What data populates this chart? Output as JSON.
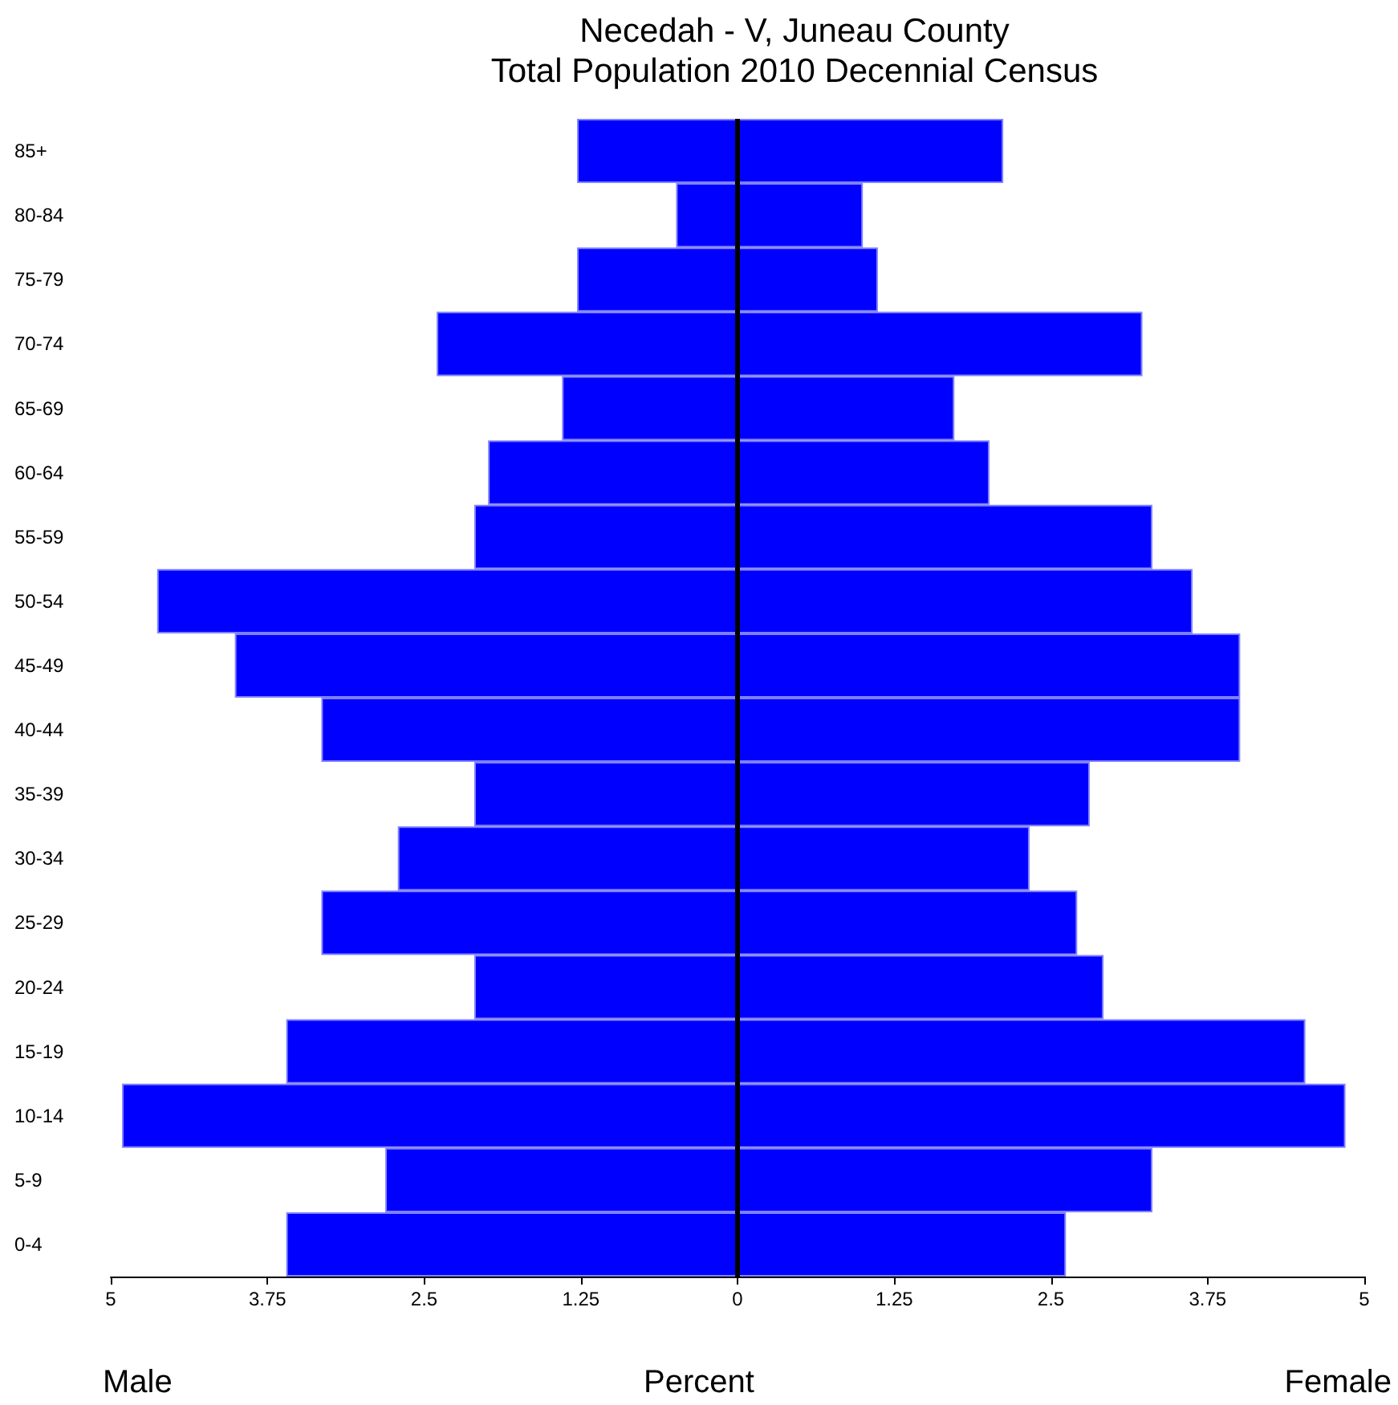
{
  "chart_data": {
    "type": "bar",
    "orientation": "horizontal",
    "stacked": true,
    "annotations": [
      "Male",
      "Female"
    ],
    "title": "Necedah - V, Juneau County",
    "subtitle": "Total Population 2010 Decennial Census",
    "xlabel": "Percent",
    "categories": [
      "85+",
      "80-84",
      "75-79",
      "70-74",
      "65-69",
      "60-64",
      "55-59",
      "50-54",
      "45-49",
      "40-44",
      "35-39",
      "30-34",
      "25-29",
      "20-24",
      "15-19",
      "10-14",
      "5-9",
      "0-4"
    ],
    "series": [
      {
        "color": "#0000ff",
        "values": [
          -1.28,
          -0.49,
          -1.28,
          -2.4,
          -1.4,
          -1.99,
          -2.1,
          -4.63,
          -4.01,
          -3.32,
          -2.1,
          -2.71,
          -3.32,
          -2.1,
          -3.6,
          -4.91,
          -2.81,
          -3.6
        ]
      },
      {
        "color": "#0000ff",
        "values": [
          2.12,
          1.0,
          1.12,
          3.23,
          1.73,
          2.01,
          3.31,
          3.63,
          4.01,
          4.01,
          2.81,
          2.33,
          2.71,
          2.92,
          4.53,
          4.85,
          3.31,
          2.62
        ]
      }
    ],
    "xlim": [
      -5,
      5
    ],
    "xticks": [
      {
        "value": -5,
        "label": "5"
      },
      {
        "value": -3.75,
        "label": "3.75"
      },
      {
        "value": -2.5,
        "label": "2.5"
      },
      {
        "value": -1.25,
        "label": "1.25"
      },
      0,
      1.25,
      2.5,
      3.75,
      5
    ],
    "ref_lines": [
      {
        "axis": "x",
        "value": 0,
        "color": "#000000"
      }
    ],
    "grid": false
  }
}
